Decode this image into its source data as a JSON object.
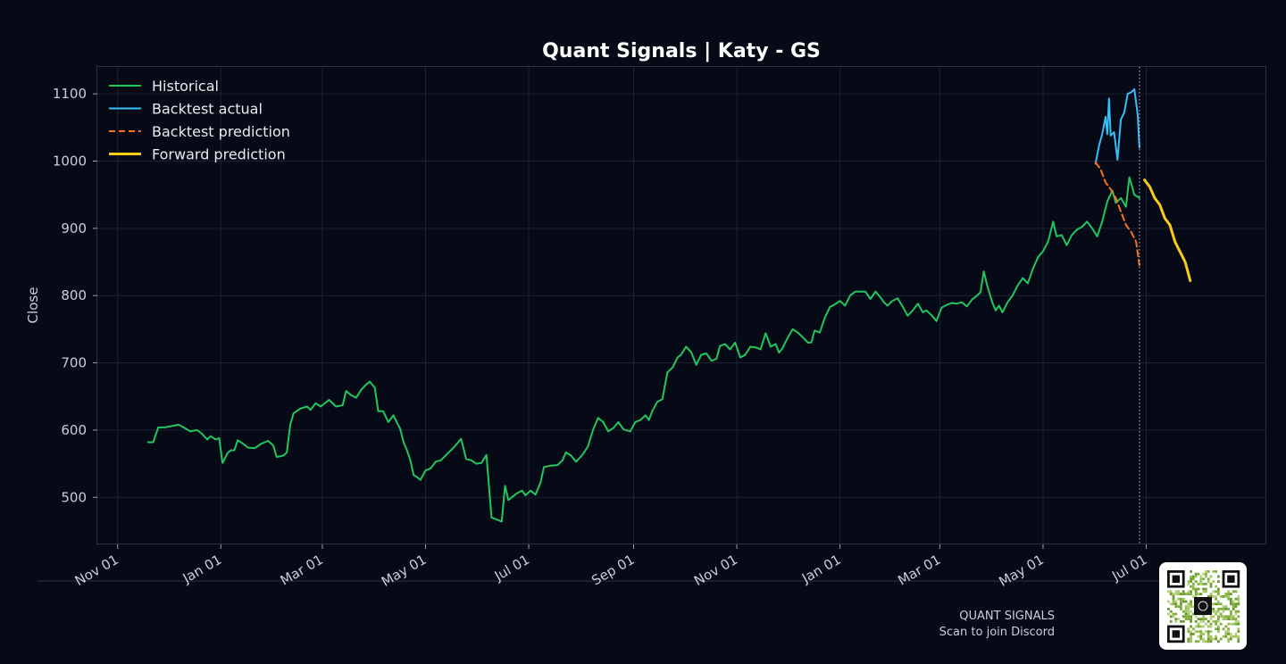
{
  "footer": {
    "brand": "QUANT SIGNALS",
    "caption": "Scan to join Discord"
  },
  "qr": {
    "icon": "qr-code-icon"
  },
  "colors": {
    "background": "#050a16",
    "historical": "#22c55e",
    "backtest_actual": "#38bdf8",
    "backtest_prediction": "#f97316",
    "forward_prediction": "#facc15",
    "grid": "#1c2233"
  },
  "chart_data": {
    "type": "line",
    "title": "Quant Signals | Katy - GS",
    "xlabel": "",
    "ylabel": "Close",
    "x_ticks": [
      "2023-11-01",
      "2024-01-01",
      "2024-03-01",
      "2024-05-01",
      "2024-07-01",
      "2024-09-01",
      "2024-11-01",
      "2025-01-01",
      "2025-03-01",
      "2025-05-01",
      "2025-07-01"
    ],
    "x_tick_labels": [
      "Nov 01",
      "Jan 01",
      "Mar 01",
      "May 01",
      "Jul 01",
      "Sep 01",
      "Nov 01",
      "Jan 01",
      "Mar 01",
      "May 01",
      "Jul 01"
    ],
    "xlim": [
      "2023-10-20",
      "2025-09-10"
    ],
    "yticks": [
      500,
      600,
      700,
      800,
      900,
      1000,
      1100
    ],
    "ylim": [
      430,
      1140
    ],
    "grid": true,
    "legend_position": "top-left",
    "cutoff_date": "2025-06-27",
    "series": [
      {
        "name": "Historical",
        "style": "solid",
        "points": [
          [
            "2023-11-19",
            582
          ],
          [
            "2023-11-22",
            582
          ],
          [
            "2023-11-25",
            604
          ],
          [
            "2023-11-29",
            604
          ],
          [
            "2023-12-03",
            606
          ],
          [
            "2023-12-07",
            608
          ],
          [
            "2023-12-10",
            604
          ],
          [
            "2023-12-14",
            598
          ],
          [
            "2023-12-18",
            600
          ],
          [
            "2023-12-21",
            594
          ],
          [
            "2023-12-24",
            586
          ],
          [
            "2023-12-26",
            591
          ],
          [
            "2023-12-29",
            586
          ],
          [
            "2023-12-31",
            588
          ],
          [
            "2024-01-02",
            551
          ],
          [
            "2024-01-05",
            566
          ],
          [
            "2024-01-07",
            570
          ],
          [
            "2024-01-09",
            570
          ],
          [
            "2024-01-11",
            585
          ],
          [
            "2024-01-14",
            580
          ],
          [
            "2024-01-17",
            574
          ],
          [
            "2024-01-21",
            573
          ],
          [
            "2024-01-25",
            580
          ],
          [
            "2024-01-29",
            584
          ],
          [
            "2024-02-01",
            577
          ],
          [
            "2024-02-03",
            560
          ],
          [
            "2024-02-07",
            562
          ],
          [
            "2024-02-09",
            567
          ],
          [
            "2024-02-11",
            608
          ],
          [
            "2024-02-13",
            625
          ],
          [
            "2024-02-17",
            632
          ],
          [
            "2024-02-21",
            635
          ],
          [
            "2024-02-23",
            630
          ],
          [
            "2024-02-26",
            640
          ],
          [
            "2024-02-29",
            635
          ],
          [
            "2024-03-03",
            641
          ],
          [
            "2024-03-05",
            645
          ],
          [
            "2024-03-09",
            635
          ],
          [
            "2024-03-13",
            637
          ],
          [
            "2024-03-15",
            658
          ],
          [
            "2024-03-18",
            652
          ],
          [
            "2024-03-21",
            648
          ],
          [
            "2024-03-24",
            660
          ],
          [
            "2024-03-27",
            668
          ],
          [
            "2024-03-29",
            672
          ],
          [
            "2024-04-01",
            663
          ],
          [
            "2024-04-03",
            628
          ],
          [
            "2024-04-06",
            628
          ],
          [
            "2024-04-09",
            612
          ],
          [
            "2024-04-12",
            622
          ],
          [
            "2024-04-14",
            612
          ],
          [
            "2024-04-16",
            602
          ],
          [
            "2024-04-18",
            582
          ],
          [
            "2024-04-20",
            570
          ],
          [
            "2024-04-22",
            555
          ],
          [
            "2024-04-24",
            533
          ],
          [
            "2024-04-26",
            530
          ],
          [
            "2024-04-28",
            526
          ],
          [
            "2024-05-01",
            540
          ],
          [
            "2024-05-04",
            543
          ],
          [
            "2024-05-07",
            553
          ],
          [
            "2024-05-10",
            555
          ],
          [
            "2024-05-14",
            565
          ],
          [
            "2024-05-18",
            575
          ],
          [
            "2024-05-22",
            587
          ],
          [
            "2024-05-25",
            557
          ],
          [
            "2024-05-28",
            555
          ],
          [
            "2024-05-31",
            550
          ],
          [
            "2024-06-03",
            551
          ],
          [
            "2024-06-06",
            563
          ],
          [
            "2024-06-09",
            470
          ],
          [
            "2024-06-12",
            467
          ],
          [
            "2024-06-15",
            464
          ],
          [
            "2024-06-17",
            517
          ],
          [
            "2024-06-19",
            496
          ],
          [
            "2024-06-21",
            500
          ],
          [
            "2024-06-24",
            506
          ],
          [
            "2024-06-27",
            510
          ],
          [
            "2024-06-29",
            503
          ],
          [
            "2024-07-02",
            510
          ],
          [
            "2024-07-05",
            504
          ],
          [
            "2024-07-08",
            522
          ],
          [
            "2024-07-10",
            545
          ],
          [
            "2024-07-14",
            547
          ],
          [
            "2024-07-18",
            548
          ],
          [
            "2024-07-21",
            555
          ],
          [
            "2024-07-23",
            567
          ],
          [
            "2024-07-26",
            562
          ],
          [
            "2024-07-29",
            553
          ],
          [
            "2024-08-02",
            564
          ],
          [
            "2024-08-05",
            576
          ],
          [
            "2024-08-08",
            600
          ],
          [
            "2024-08-11",
            618
          ],
          [
            "2024-08-14",
            612
          ],
          [
            "2024-08-17",
            598
          ],
          [
            "2024-08-20",
            603
          ],
          [
            "2024-08-23",
            612
          ],
          [
            "2024-08-26",
            601
          ],
          [
            "2024-08-30",
            598
          ],
          [
            "2024-09-02",
            612
          ],
          [
            "2024-09-05",
            615
          ],
          [
            "2024-09-08",
            622
          ],
          [
            "2024-09-10",
            615
          ],
          [
            "2024-09-12",
            628
          ],
          [
            "2024-09-15",
            642
          ],
          [
            "2024-09-18",
            646
          ],
          [
            "2024-09-21",
            686
          ],
          [
            "2024-09-24",
            693
          ],
          [
            "2024-09-27",
            708
          ],
          [
            "2024-09-29",
            712
          ],
          [
            "2024-10-02",
            724
          ],
          [
            "2024-10-05",
            716
          ],
          [
            "2024-10-08",
            697
          ],
          [
            "2024-10-11",
            712
          ],
          [
            "2024-10-14",
            714
          ],
          [
            "2024-10-17",
            703
          ],
          [
            "2024-10-20",
            706
          ],
          [
            "2024-10-22",
            725
          ],
          [
            "2024-10-25",
            728
          ],
          [
            "2024-10-28",
            720
          ],
          [
            "2024-10-31",
            730
          ],
          [
            "2024-11-03",
            708
          ],
          [
            "2024-11-06",
            712
          ],
          [
            "2024-11-09",
            724
          ],
          [
            "2024-11-12",
            723
          ],
          [
            "2024-11-15",
            720
          ],
          [
            "2024-11-18",
            744
          ],
          [
            "2024-11-21",
            724
          ],
          [
            "2024-11-24",
            728
          ],
          [
            "2024-11-26",
            715
          ],
          [
            "2024-11-28",
            722
          ],
          [
            "2024-12-01",
            737
          ],
          [
            "2024-12-04",
            750
          ],
          [
            "2024-12-07",
            745
          ],
          [
            "2024-12-10",
            738
          ],
          [
            "2024-12-13",
            730
          ],
          [
            "2024-12-15",
            730
          ],
          [
            "2024-12-17",
            748
          ],
          [
            "2024-12-20",
            745
          ],
          [
            "2024-12-23",
            767
          ],
          [
            "2024-12-26",
            783
          ],
          [
            "2024-12-29",
            787
          ],
          [
            "2025-01-01",
            792
          ],
          [
            "2025-01-04",
            785
          ],
          [
            "2025-01-07",
            800
          ],
          [
            "2025-01-10",
            806
          ],
          [
            "2025-01-13",
            806
          ],
          [
            "2025-01-16",
            806
          ],
          [
            "2025-01-19",
            795
          ],
          [
            "2025-01-22",
            806
          ],
          [
            "2025-01-25",
            797
          ],
          [
            "2025-01-27",
            790
          ],
          [
            "2025-01-29",
            785
          ],
          [
            "2025-02-01",
            792
          ],
          [
            "2025-02-04",
            796
          ],
          [
            "2025-02-07",
            784
          ],
          [
            "2025-02-10",
            770
          ],
          [
            "2025-02-13",
            778
          ],
          [
            "2025-02-16",
            788
          ],
          [
            "2025-02-19",
            775
          ],
          [
            "2025-02-21",
            778
          ],
          [
            "2025-02-24",
            771
          ],
          [
            "2025-02-27",
            762
          ],
          [
            "2025-03-02",
            782
          ],
          [
            "2025-03-05",
            786
          ],
          [
            "2025-03-08",
            789
          ],
          [
            "2025-03-11",
            788
          ],
          [
            "2025-03-14",
            790
          ],
          [
            "2025-03-17",
            784
          ],
          [
            "2025-03-20",
            794
          ],
          [
            "2025-03-23",
            800
          ],
          [
            "2025-03-25",
            805
          ],
          [
            "2025-03-27",
            836
          ],
          [
            "2025-03-29",
            815
          ],
          [
            "2025-04-01",
            790
          ],
          [
            "2025-04-03",
            778
          ],
          [
            "2025-04-05",
            785
          ],
          [
            "2025-04-07",
            775
          ],
          [
            "2025-04-10",
            790
          ],
          [
            "2025-04-13",
            800
          ],
          [
            "2025-04-16",
            815
          ],
          [
            "2025-04-19",
            826
          ],
          [
            "2025-04-22",
            818
          ],
          [
            "2025-04-25",
            840
          ],
          [
            "2025-04-28",
            857
          ],
          [
            "2025-05-01",
            866
          ],
          [
            "2025-05-04",
            880
          ],
          [
            "2025-05-07",
            910
          ],
          [
            "2025-05-09",
            888
          ],
          [
            "2025-05-12",
            890
          ],
          [
            "2025-05-15",
            875
          ],
          [
            "2025-05-18",
            890
          ],
          [
            "2025-05-21",
            898
          ],
          [
            "2025-05-24",
            902
          ],
          [
            "2025-05-27",
            910
          ],
          [
            "2025-05-30",
            900
          ],
          [
            "2025-06-02",
            888
          ],
          [
            "2025-06-05",
            910
          ],
          [
            "2025-06-08",
            940
          ],
          [
            "2025-06-11",
            956
          ],
          [
            "2025-06-13",
            938
          ],
          [
            "2025-06-16",
            945
          ],
          [
            "2025-06-19",
            932
          ],
          [
            "2025-06-21",
            976
          ],
          [
            "2025-06-24",
            950
          ],
          [
            "2025-06-27",
            945
          ]
        ]
      },
      {
        "name": "Backtest actual",
        "style": "solid",
        "points": [
          [
            "2025-06-01",
            996
          ],
          [
            "2025-06-03",
            1022
          ],
          [
            "2025-06-05",
            1040
          ],
          [
            "2025-06-07",
            1066
          ],
          [
            "2025-06-08",
            1040
          ],
          [
            "2025-06-09",
            1093
          ],
          [
            "2025-06-10",
            1038
          ],
          [
            "2025-06-12",
            1043
          ],
          [
            "2025-06-14",
            1002
          ],
          [
            "2025-06-16",
            1062
          ],
          [
            "2025-06-18",
            1072
          ],
          [
            "2025-06-20",
            1100
          ],
          [
            "2025-06-22",
            1102
          ],
          [
            "2025-06-24",
            1107
          ],
          [
            "2025-06-26",
            1068
          ],
          [
            "2025-06-27",
            1020
          ]
        ]
      },
      {
        "name": "Backtest prediction",
        "style": "dashed",
        "points": [
          [
            "2025-06-01",
            998
          ],
          [
            "2025-06-04",
            988
          ],
          [
            "2025-06-07",
            968
          ],
          [
            "2025-06-10",
            958
          ],
          [
            "2025-06-13",
            945
          ],
          [
            "2025-06-16",
            925
          ],
          [
            "2025-06-19",
            905
          ],
          [
            "2025-06-22",
            895
          ],
          [
            "2025-06-25",
            880
          ],
          [
            "2025-06-27",
            845
          ]
        ]
      },
      {
        "name": "Forward prediction",
        "style": "solid-thick",
        "points": [
          [
            "2025-06-30",
            972
          ],
          [
            "2025-07-03",
            962
          ],
          [
            "2025-07-06",
            945
          ],
          [
            "2025-07-09",
            935
          ],
          [
            "2025-07-12",
            915
          ],
          [
            "2025-07-15",
            905
          ],
          [
            "2025-07-18",
            880
          ],
          [
            "2025-07-21",
            865
          ],
          [
            "2025-07-24",
            850
          ],
          [
            "2025-07-27",
            822
          ]
        ]
      }
    ]
  }
}
